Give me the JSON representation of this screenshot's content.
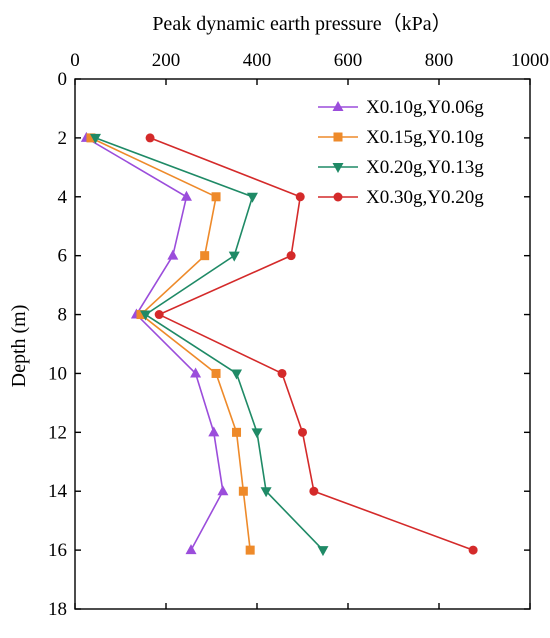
{
  "chart_data": {
    "type": "line",
    "title": "",
    "xlabel": "Peak dynamic earth pressure（kPa）",
    "ylabel": "Depth (m)",
    "xlim": [
      0,
      1000
    ],
    "ylim": [
      0,
      18
    ],
    "x_axis_position": "top",
    "y_axis_inverted": true,
    "x_ticks": [
      0,
      200,
      400,
      600,
      800,
      1000
    ],
    "y_ticks": [
      0,
      2,
      4,
      6,
      8,
      10,
      12,
      14,
      16,
      18
    ],
    "grid": false,
    "legend": "top-right",
    "series": [
      {
        "name": "X0.10g,Y0.06g",
        "color": "#9B4DDB",
        "marker": "triangle-up",
        "points": [
          [
            25,
            2
          ],
          [
            245,
            4
          ],
          [
            215,
            6
          ],
          [
            135,
            8
          ],
          [
            265,
            10
          ],
          [
            305,
            12
          ],
          [
            325,
            14
          ],
          [
            255,
            16
          ]
        ]
      },
      {
        "name": "X0.15g,Y0.10g",
        "color": "#EE8A2A",
        "marker": "square",
        "points": [
          [
            35,
            2
          ],
          [
            310,
            4
          ],
          [
            285,
            6
          ],
          [
            145,
            8
          ],
          [
            310,
            10
          ],
          [
            355,
            12
          ],
          [
            370,
            14
          ],
          [
            385,
            16
          ]
        ]
      },
      {
        "name": "X0.20g,Y0.13g",
        "color": "#1F8A66",
        "marker": "triangle-down",
        "points": [
          [
            45,
            2
          ],
          [
            390,
            4
          ],
          [
            350,
            6
          ],
          [
            155,
            8
          ],
          [
            355,
            10
          ],
          [
            400,
            12
          ],
          [
            420,
            14
          ],
          [
            545,
            16
          ]
        ]
      },
      {
        "name": "X0.30g,Y0.20g",
        "color": "#D42A2A",
        "marker": "circle",
        "points": [
          [
            165,
            2
          ],
          [
            495,
            4
          ],
          [
            475,
            6
          ],
          [
            185,
            8
          ],
          [
            455,
            10
          ],
          [
            500,
            12
          ],
          [
            525,
            14
          ],
          [
            875,
            16
          ]
        ]
      }
    ]
  }
}
